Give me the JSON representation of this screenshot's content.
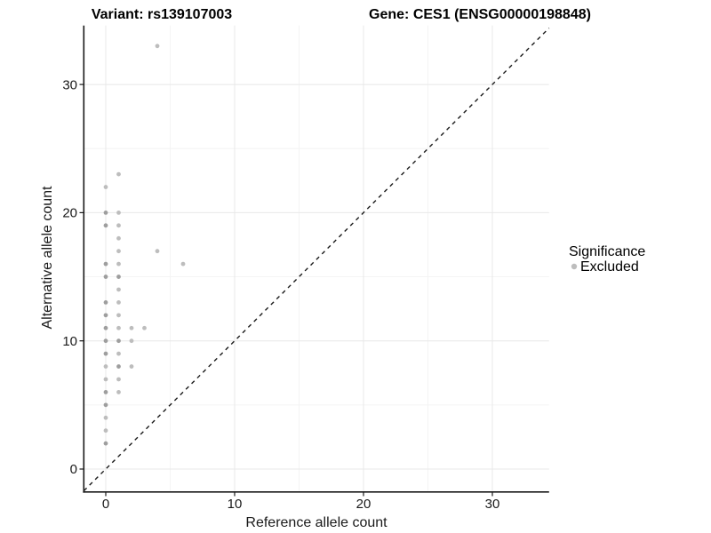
{
  "titles": {
    "variant": "Variant: rs139107003",
    "gene": "Gene: CES1 (ENSG00000198848)"
  },
  "chart_data": {
    "type": "scatter",
    "xlabel": "Reference allele count",
    "ylabel": "Alternative allele count",
    "x_ticks": [
      0,
      10,
      20,
      30
    ],
    "y_ticks": [
      0,
      10,
      20,
      30
    ],
    "x_minor_ticks": [
      5,
      15,
      25
    ],
    "y_minor_ticks": [
      5,
      15,
      25
    ],
    "xlim": [
      -1.7,
      34.4
    ],
    "ylim": [
      -1.7,
      34.6
    ],
    "grid": "major+minor",
    "identity_line": {
      "equation": "y = x",
      "style": "dashed",
      "color": "#1a1a1a"
    },
    "legend": {
      "position": "right",
      "title": "Significance",
      "items": [
        {
          "label": "Excluded",
          "color": "#bdbdbd"
        }
      ]
    },
    "series": [
      {
        "name": "Excluded",
        "points": [
          {
            "x": 4,
            "y": 33,
            "shade": "light"
          },
          {
            "x": 1,
            "y": 23,
            "shade": "light"
          },
          {
            "x": 0,
            "y": 22,
            "shade": "light"
          },
          {
            "x": 0,
            "y": 20,
            "shade": "dark"
          },
          {
            "x": 1,
            "y": 20,
            "shade": "light"
          },
          {
            "x": 0,
            "y": 19,
            "shade": "dark"
          },
          {
            "x": 1,
            "y": 19,
            "shade": "light"
          },
          {
            "x": 1,
            "y": 18,
            "shade": "light"
          },
          {
            "x": 1,
            "y": 17,
            "shade": "light"
          },
          {
            "x": 4,
            "y": 17,
            "shade": "light"
          },
          {
            "x": 0,
            "y": 16,
            "shade": "dark"
          },
          {
            "x": 1,
            "y": 16,
            "shade": "light"
          },
          {
            "x": 6,
            "y": 16,
            "shade": "light"
          },
          {
            "x": 0,
            "y": 15,
            "shade": "dark"
          },
          {
            "x": 1,
            "y": 15,
            "shade": "dark"
          },
          {
            "x": 1,
            "y": 14,
            "shade": "light"
          },
          {
            "x": 0,
            "y": 13,
            "shade": "dark"
          },
          {
            "x": 1,
            "y": 13,
            "shade": "light"
          },
          {
            "x": 0,
            "y": 12,
            "shade": "dark"
          },
          {
            "x": 1,
            "y": 12,
            "shade": "light"
          },
          {
            "x": 0,
            "y": 11,
            "shade": "dark"
          },
          {
            "x": 1,
            "y": 11,
            "shade": "light"
          },
          {
            "x": 2,
            "y": 11,
            "shade": "light"
          },
          {
            "x": 3,
            "y": 11,
            "shade": "light"
          },
          {
            "x": 0,
            "y": 10,
            "shade": "dark"
          },
          {
            "x": 1,
            "y": 10,
            "shade": "dark"
          },
          {
            "x": 2,
            "y": 10,
            "shade": "light"
          },
          {
            "x": 0,
            "y": 9,
            "shade": "dark"
          },
          {
            "x": 1,
            "y": 9,
            "shade": "light"
          },
          {
            "x": 0,
            "y": 8,
            "shade": "light"
          },
          {
            "x": 1,
            "y": 8,
            "shade": "dark"
          },
          {
            "x": 2,
            "y": 8,
            "shade": "light"
          },
          {
            "x": 0,
            "y": 7,
            "shade": "light"
          },
          {
            "x": 1,
            "y": 7,
            "shade": "light"
          },
          {
            "x": 0,
            "y": 6,
            "shade": "dark"
          },
          {
            "x": 1,
            "y": 6,
            "shade": "light"
          },
          {
            "x": 0,
            "y": 5,
            "shade": "dark"
          },
          {
            "x": 0,
            "y": 4,
            "shade": "light"
          },
          {
            "x": 0,
            "y": 3,
            "shade": "light"
          },
          {
            "x": 0,
            "y": 2,
            "shade": "dark"
          }
        ]
      }
    ]
  },
  "colors": {
    "point_light": "#bdbdbd",
    "point_dark": "#9e9e9e",
    "grid_major": "#e8e8e8",
    "grid_minor": "#f4f4f4",
    "axis_line": "#1a1a1a",
    "background": "#ffffff"
  }
}
